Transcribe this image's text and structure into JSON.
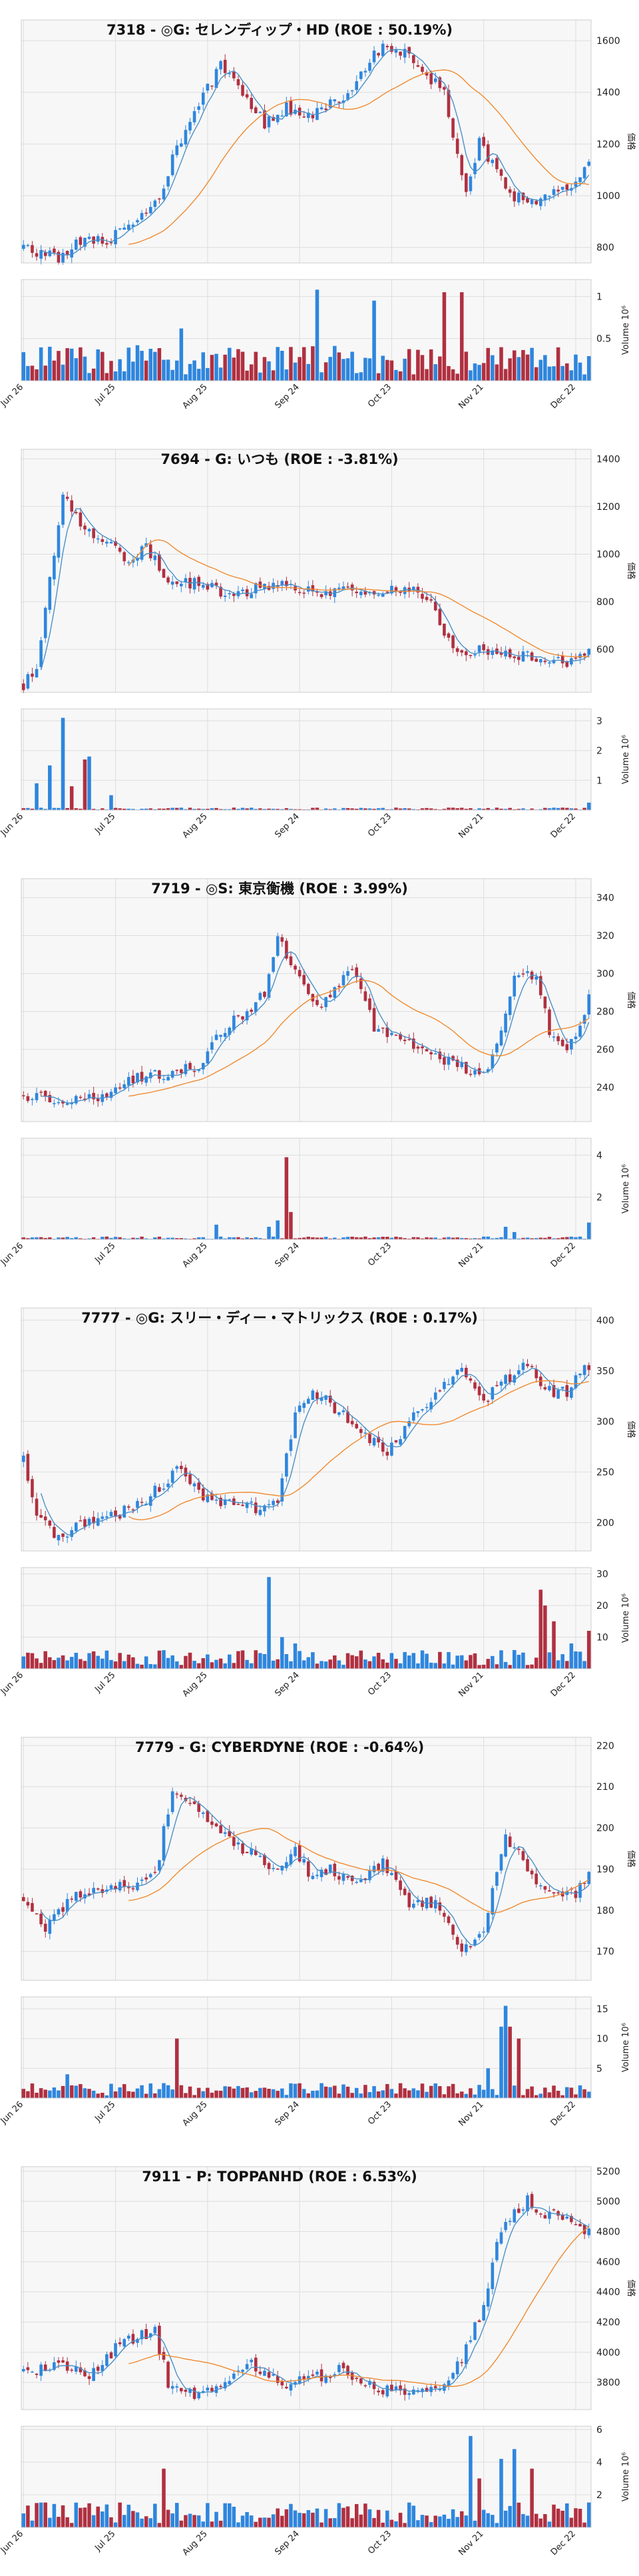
{
  "colors": {
    "up": "#2e86de",
    "down": "#b03040",
    "ma_short": "#4a90c8",
    "ma_long": "#f08a30",
    "plot_bg": "#f7f7f7",
    "grid": "#dddddd"
  },
  "chart_data": [
    {
      "type": "candlestick",
      "title": "7318 - ◎G: セレンディップ・HD (ROE : 50.19%)",
      "ylabel": "価格",
      "volume_label": "Volume 10⁶",
      "x_ticks": [
        "Jun 26",
        "Jul 25",
        "Aug 25",
        "Sep 24",
        "Oct 23",
        "Nov 21",
        "Dec 22"
      ],
      "price_ticks": [
        800,
        1000,
        1200,
        1400,
        1600
      ],
      "price_range": [
        740,
        1680
      ],
      "volume_ticks": [
        0.5,
        1.0
      ],
      "volume_max": 1.2,
      "keypoints": [
        [
          0,
          800
        ],
        [
          8,
          760
        ],
        [
          14,
          840
        ],
        [
          20,
          830
        ],
        [
          25,
          900
        ],
        [
          30,
          960
        ],
        [
          35,
          1180
        ],
        [
          40,
          1350
        ],
        [
          45,
          1500
        ],
        [
          50,
          1400
        ],
        [
          55,
          1280
        ],
        [
          60,
          1340
        ],
        [
          65,
          1300
        ],
        [
          70,
          1350
        ],
        [
          75,
          1420
        ],
        [
          80,
          1560
        ],
        [
          85,
          1580
        ],
        [
          90,
          1500
        ],
        [
          96,
          1400
        ],
        [
          101,
          1000
        ],
        [
          104,
          1200
        ],
        [
          108,
          1100
        ],
        [
          112,
          1000
        ],
        [
          118,
          980
        ],
        [
          124,
          1030
        ],
        [
          129,
          1120
        ]
      ],
      "volume_level": 0.25,
      "volume_spikes": [
        [
          67,
          1.08
        ],
        [
          80,
          0.95
        ],
        [
          96,
          1.05
        ],
        [
          100,
          1.05
        ],
        [
          36,
          0.62
        ]
      ]
    },
    {
      "type": "candlestick",
      "title": "7694 - G: いつも (ROE : -3.81%)",
      "ylabel": "価格",
      "volume_label": "Volume 10⁶",
      "x_ticks": [
        "Jun 26",
        "Jul 25",
        "Aug 25",
        "Sep 24",
        "Oct 23",
        "Nov 21",
        "Dec 22"
      ],
      "price_ticks": [
        600,
        800,
        1000,
        1200,
        1400
      ],
      "price_range": [
        420,
        1440
      ],
      "volume_ticks": [
        1,
        2,
        3
      ],
      "volume_max": 3.4,
      "keypoints": [
        [
          0,
          450
        ],
        [
          3,
          520
        ],
        [
          6,
          900
        ],
        [
          9,
          1250
        ],
        [
          13,
          1120
        ],
        [
          18,
          1060
        ],
        [
          24,
          980
        ],
        [
          28,
          1020
        ],
        [
          33,
          900
        ],
        [
          40,
          870
        ],
        [
          48,
          830
        ],
        [
          55,
          870
        ],
        [
          62,
          860
        ],
        [
          70,
          840
        ],
        [
          80,
          840
        ],
        [
          88,
          845
        ],
        [
          92,
          830
        ],
        [
          96,
          660
        ],
        [
          100,
          600
        ],
        [
          105,
          600
        ],
        [
          112,
          580
        ],
        [
          118,
          560
        ],
        [
          124,
          540
        ],
        [
          127,
          560
        ],
        [
          129,
          600
        ]
      ],
      "volume_level": 0.05,
      "volume_spikes": [
        [
          3,
          0.9
        ],
        [
          6,
          1.5
        ],
        [
          9,
          3.1
        ],
        [
          14,
          1.7
        ],
        [
          15,
          1.8
        ],
        [
          11,
          0.8
        ],
        [
          20,
          0.5
        ],
        [
          129,
          0.25
        ]
      ]
    },
    {
      "type": "candlestick",
      "title": "7719 - ◎S: 東京衡機 (ROE : 3.99%)",
      "ylabel": "価格",
      "volume_label": "Volume 10⁶",
      "x_ticks": [
        "Jun 26",
        "Jul 25",
        "Aug 25",
        "Sep 24",
        "Oct 23",
        "Nov 21",
        "Dec 22"
      ],
      "price_ticks": [
        240,
        260,
        280,
        300,
        320,
        340
      ],
      "price_range": [
        222,
        350
      ],
      "volume_ticks": [
        2,
        4
      ],
      "volume_max": 4.8,
      "keypoints": [
        [
          0,
          236
        ],
        [
          10,
          232
        ],
        [
          18,
          236
        ],
        [
          25,
          244
        ],
        [
          33,
          248
        ],
        [
          40,
          250
        ],
        [
          45,
          270
        ],
        [
          50,
          278
        ],
        [
          55,
          290
        ],
        [
          58,
          320
        ],
        [
          62,
          300
        ],
        [
          67,
          282
        ],
        [
          72,
          292
        ],
        [
          75,
          305
        ],
        [
          80,
          272
        ],
        [
          85,
          265
        ],
        [
          92,
          258
        ],
        [
          100,
          250
        ],
        [
          105,
          245
        ],
        [
          110,
          280
        ],
        [
          112,
          300
        ],
        [
          117,
          300
        ],
        [
          120,
          270
        ],
        [
          124,
          262
        ],
        [
          127,
          272
        ],
        [
          129,
          290
        ]
      ],
      "volume_level": 0.08,
      "volume_spikes": [
        [
          44,
          0.7
        ],
        [
          56,
          0.6
        ],
        [
          58,
          0.9
        ],
        [
          60,
          3.9
        ],
        [
          61,
          1.3
        ],
        [
          110,
          0.6
        ],
        [
          112,
          0.35
        ],
        [
          129,
          0.8
        ]
      ]
    },
    {
      "type": "candlestick",
      "title": "7777 - ◎G: スリー・ディー・マトリックス (ROE : 0.17%)",
      "ylabel": "価格",
      "volume_label": "Volume 10⁶",
      "x_ticks": [
        "Jun 26",
        "Jul 25",
        "Aug 25",
        "Sep 24",
        "Oct 23",
        "Nov 21",
        "Dec 22"
      ],
      "price_ticks": [
        200,
        250,
        300,
        350,
        400
      ],
      "price_range": [
        172,
        412
      ],
      "volume_ticks": [
        10,
        20,
        30
      ],
      "volume_max": 32,
      "keypoints": [
        [
          0,
          262
        ],
        [
          3,
          210
        ],
        [
          7,
          185
        ],
        [
          12,
          195
        ],
        [
          20,
          205
        ],
        [
          27,
          220
        ],
        [
          36,
          255
        ],
        [
          42,
          222
        ],
        [
          50,
          215
        ],
        [
          56,
          215
        ],
        [
          58,
          220
        ],
        [
          62,
          310
        ],
        [
          66,
          330
        ],
        [
          72,
          310
        ],
        [
          78,
          285
        ],
        [
          83,
          270
        ],
        [
          88,
          300
        ],
        [
          95,
          330
        ],
        [
          100,
          350
        ],
        [
          105,
          320
        ],
        [
          110,
          340
        ],
        [
          115,
          355
        ],
        [
          120,
          330
        ],
        [
          124,
          330
        ],
        [
          127,
          350
        ],
        [
          129,
          355
        ]
      ],
      "volume_level": 3.5,
      "volume_spikes": [
        [
          56,
          29
        ],
        [
          59,
          10
        ],
        [
          62,
          8
        ],
        [
          118,
          25
        ],
        [
          119,
          20
        ],
        [
          121,
          15
        ],
        [
          125,
          8
        ],
        [
          129,
          12
        ]
      ]
    },
    {
      "type": "candlestick",
      "title": "7779 - G: CYBERDYNE (ROE : -0.64%)",
      "ylabel": "価格",
      "volume_label": "Volume 10⁶",
      "x_ticks": [
        "Jun 26",
        "Jul 25",
        "Aug 25",
        "Sep 24",
        "Oct 23",
        "Nov 21",
        "Dec 22"
      ],
      "price_ticks": [
        170,
        180,
        190,
        200,
        210,
        220
      ],
      "price_range": [
        163,
        222
      ],
      "volume_ticks": [
        5,
        10,
        15
      ],
      "volume_max": 17,
      "keypoints": [
        [
          0,
          183
        ],
        [
          5,
          176
        ],
        [
          10,
          182
        ],
        [
          15,
          185
        ],
        [
          20,
          186
        ],
        [
          25,
          186
        ],
        [
          30,
          188
        ],
        [
          34,
          210
        ],
        [
          38,
          206
        ],
        [
          44,
          200
        ],
        [
          50,
          195
        ],
        [
          58,
          190
        ],
        [
          62,
          194
        ],
        [
          66,
          188
        ],
        [
          70,
          190
        ],
        [
          75,
          186
        ],
        [
          82,
          192
        ],
        [
          88,
          182
        ],
        [
          94,
          182
        ],
        [
          100,
          170
        ],
        [
          105,
          176
        ],
        [
          110,
          198
        ],
        [
          114,
          192
        ],
        [
          118,
          185
        ],
        [
          122,
          183
        ],
        [
          126,
          184
        ],
        [
          129,
          188
        ]
      ],
      "volume_level": 1.5,
      "volume_spikes": [
        [
          35,
          10
        ],
        [
          10,
          4
        ],
        [
          110,
          15.5
        ],
        [
          109,
          12
        ],
        [
          111,
          12
        ],
        [
          113,
          10
        ],
        [
          106,
          5
        ]
      ]
    },
    {
      "type": "candlestick",
      "title": "7911 - P: TOPPANHD (ROE : 6.53%)",
      "ylabel": "価格",
      "volume_label": "Volume 10⁶",
      "x_ticks": [
        "Jun 26",
        "Jul 25",
        "Aug 25",
        "Sep 24",
        "Oct 23",
        "Nov 21",
        "Dec 22"
      ],
      "price_ticks": [
        3800,
        4000,
        4200,
        4400,
        4600,
        4800,
        5000,
        5200
      ],
      "price_range": [
        3620,
        5230
      ],
      "volume_ticks": [
        2,
        4,
        6
      ],
      "volume_max": 6.2,
      "keypoints": [
        [
          0,
          3880
        ],
        [
          8,
          3900
        ],
        [
          15,
          3850
        ],
        [
          22,
          4050
        ],
        [
          30,
          4140
        ],
        [
          33,
          3800
        ],
        [
          38,
          3720
        ],
        [
          45,
          3780
        ],
        [
          52,
          3920
        ],
        [
          58,
          3800
        ],
        [
          63,
          3800
        ],
        [
          72,
          3880
        ],
        [
          80,
          3760
        ],
        [
          88,
          3720
        ],
        [
          95,
          3760
        ],
        [
          100,
          3950
        ],
        [
          105,
          4300
        ],
        [
          108,
          4750
        ],
        [
          110,
          4880
        ],
        [
          115,
          5000
        ],
        [
          118,
          4900
        ],
        [
          121,
          4950
        ],
        [
          125,
          4850
        ],
        [
          129,
          4800
        ]
      ],
      "volume_level": 0.9,
      "volume_spikes": [
        [
          32,
          3.6
        ],
        [
          102,
          5.6
        ],
        [
          109,
          4.2
        ],
        [
          112,
          4.8
        ],
        [
          116,
          3.6
        ],
        [
          104,
          3.0
        ]
      ]
    }
  ]
}
